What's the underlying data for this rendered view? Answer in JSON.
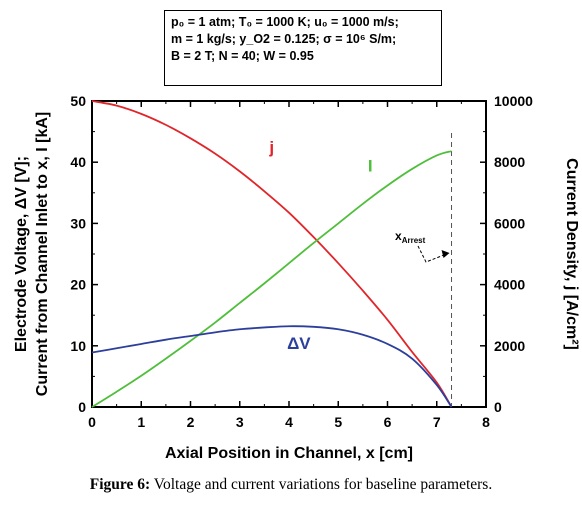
{
  "params": {
    "line1": "p₀ = 1 atm; T₀ = 1000 K; u₀ = 1000 m/s;",
    "line2": "m = 1 kg/s; y_O2 = 0.125; σ = 10⁶ S/m;",
    "line3": "B = 2 T; N = 40; W = 0.95"
  },
  "caption": {
    "label": "Figure 6:",
    "text": " Voltage and current variations for baseline parameters."
  },
  "chart_data": {
    "type": "line",
    "xlabel": "Axial Position in Channel, x [cm]",
    "ylabel_left_line1": "Electrode Voltage, ΔV [V];",
    "ylabel_left_line2": "Current from Channel Inlet to x, I [kA]",
    "ylabel_right": "Current Density, j [A/cm²]",
    "xlim": [
      0,
      8
    ],
    "ylim_left": [
      0,
      50
    ],
    "ylim_right": [
      0,
      10000
    ],
    "x_ticks": [
      "0",
      "1",
      "2",
      "3",
      "4",
      "5",
      "6",
      "7",
      "8"
    ],
    "y_left_ticks": [
      "0",
      "10",
      "20",
      "30",
      "40",
      "50"
    ],
    "y_right_ticks": [
      "0",
      "2000",
      "4000",
      "6000",
      "8000",
      "10000"
    ],
    "annotation": {
      "text": "x",
      "sub": "Arrest",
      "x_value": 7.3
    },
    "series": [
      {
        "name": "j",
        "axis": "right",
        "color": "#e0262b",
        "x": [
          0,
          0.5,
          1,
          1.5,
          2,
          2.5,
          3,
          3.5,
          4,
          4.5,
          5,
          5.5,
          6,
          6.5,
          7,
          7.3
        ],
        "y": [
          10000,
          9850,
          9580,
          9220,
          8780,
          8280,
          7700,
          7050,
          6350,
          5550,
          4700,
          3800,
          2850,
          1800,
          800,
          0
        ]
      },
      {
        "name": "I",
        "axis": "left",
        "color": "#4fbf3b",
        "x": [
          0,
          0.5,
          1,
          1.5,
          2,
          2.5,
          3,
          3.5,
          4,
          4.5,
          5,
          5.5,
          6,
          6.5,
          7,
          7.3
        ],
        "y": [
          0,
          2.5,
          5.1,
          7.9,
          10.8,
          13.8,
          17,
          20.2,
          23.5,
          26.8,
          30,
          33.2,
          36.2,
          38.9,
          41.1,
          41.8
        ]
      },
      {
        "name": "ΔV",
        "axis": "left",
        "color": "#2c3f9c",
        "x": [
          0,
          0.5,
          1,
          1.5,
          2,
          2.5,
          3,
          3.5,
          4,
          4.5,
          5,
          5.5,
          6,
          6.5,
          7,
          7.3
        ],
        "y": [
          8.9,
          9.6,
          10.3,
          11,
          11.6,
          12.2,
          12.7,
          13,
          13.2,
          13.1,
          12.7,
          11.8,
          10.3,
          7.9,
          3.6,
          0
        ]
      }
    ],
    "labels": [
      {
        "text": "j",
        "color": "#e0262b",
        "x": 3.65,
        "y_left": 41.5
      },
      {
        "text": "I",
        "color": "#4fbf3b",
        "x": 5.65,
        "y_left": 38.5
      },
      {
        "text": "ΔV",
        "color": "#2c3f9c",
        "x": 4.2,
        "y_left": 9.5
      }
    ]
  }
}
